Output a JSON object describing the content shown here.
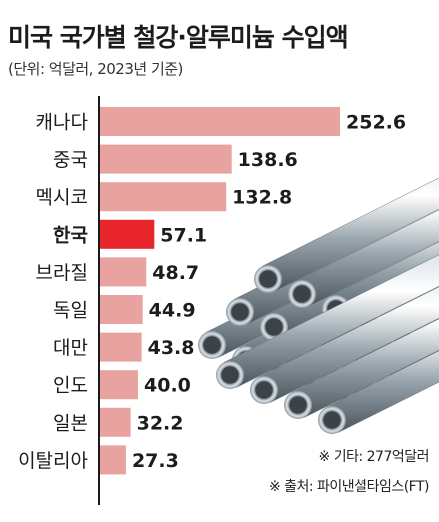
{
  "title": "미국 국가별 철강·알루미늄 수입액",
  "subtitle": "(단위: 억달러, 2023년 기준)",
  "notes": {
    "other": "※ 기타: 277억달러",
    "source": "※ 출처: 파이낸셜타임스(FT)"
  },
  "colors": {
    "bar": "#e8a3a0",
    "highlight": "#e8262b",
    "axis": "#1a1a1a"
  },
  "chart_data": {
    "type": "bar",
    "orientation": "horizontal",
    "title": "미국 국가별 철강·알루미늄 수입액",
    "subtitle": "(단위: 억달러, 2023년 기준)",
    "categories": [
      "캐나다",
      "중국",
      "멕시코",
      "한국",
      "브라질",
      "독일",
      "대만",
      "인도",
      "일본",
      "이탈리아"
    ],
    "values": [
      252.6,
      138.6,
      132.8,
      57.1,
      48.7,
      44.9,
      43.8,
      40.0,
      32.2,
      27.3
    ],
    "value_labels": [
      "252.6",
      "138.6",
      "132.8",
      "57.1",
      "48.7",
      "44.9",
      "43.8",
      "40.0",
      "32.2",
      "27.3"
    ],
    "highlight": "한국",
    "xlim": [
      0,
      252.6
    ],
    "grid": false
  }
}
